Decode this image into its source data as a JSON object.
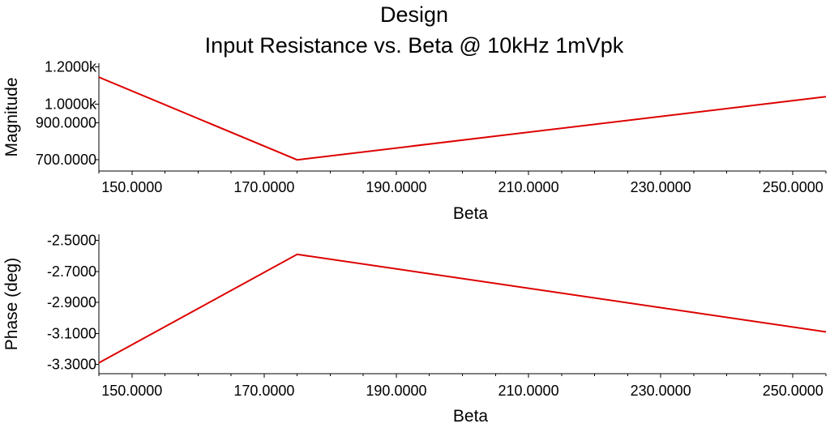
{
  "chart_data": {
    "title": "Design",
    "subtitle": "Input Resistance vs. Beta @ 10kHz 1mVpk",
    "charts": [
      {
        "id": "magnitude",
        "type": "line",
        "xlabel": "Beta",
        "ylabel": "Magnitude",
        "xlim": [
          145,
          255
        ],
        "ylim": [
          640,
          1220
        ],
        "x_ticks": [
          150,
          170,
          190,
          210,
          230,
          250
        ],
        "x_tick_labels": [
          "150.0000",
          "170.0000",
          "190.0000",
          "210.0000",
          "230.0000",
          "250.0000"
        ],
        "y_ticks": [
          700,
          900,
          1000,
          1200
        ],
        "y_tick_labels": [
          "700.0000",
          "900.0000",
          "1.0000k",
          "1.2000k"
        ],
        "color": "#dd0000",
        "series": [
          {
            "x": [
              145,
              175,
              255
            ],
            "y": [
              1145,
              700,
              1040
            ]
          }
        ]
      },
      {
        "id": "phase",
        "type": "line",
        "xlabel": "Beta",
        "ylabel": "Phase (deg)",
        "xlim": [
          145,
          255
        ],
        "ylim": [
          -3.36,
          -2.46
        ],
        "x_ticks": [
          150,
          170,
          190,
          210,
          230,
          250
        ],
        "x_tick_labels": [
          "150.0000",
          "170.0000",
          "190.0000",
          "210.0000",
          "230.0000",
          "250.0000"
        ],
        "y_ticks": [
          -3.3,
          -3.1,
          -2.9,
          -2.7,
          -2.5
        ],
        "y_tick_labels": [
          "-3.3000",
          "-3.1000",
          "-2.9000",
          "-2.7000",
          "-2.5000"
        ],
        "color": "#dd0000",
        "series": [
          {
            "x": [
              145,
              175,
              255
            ],
            "y": [
              -3.29,
              -2.59,
              -3.09
            ]
          }
        ]
      }
    ]
  }
}
